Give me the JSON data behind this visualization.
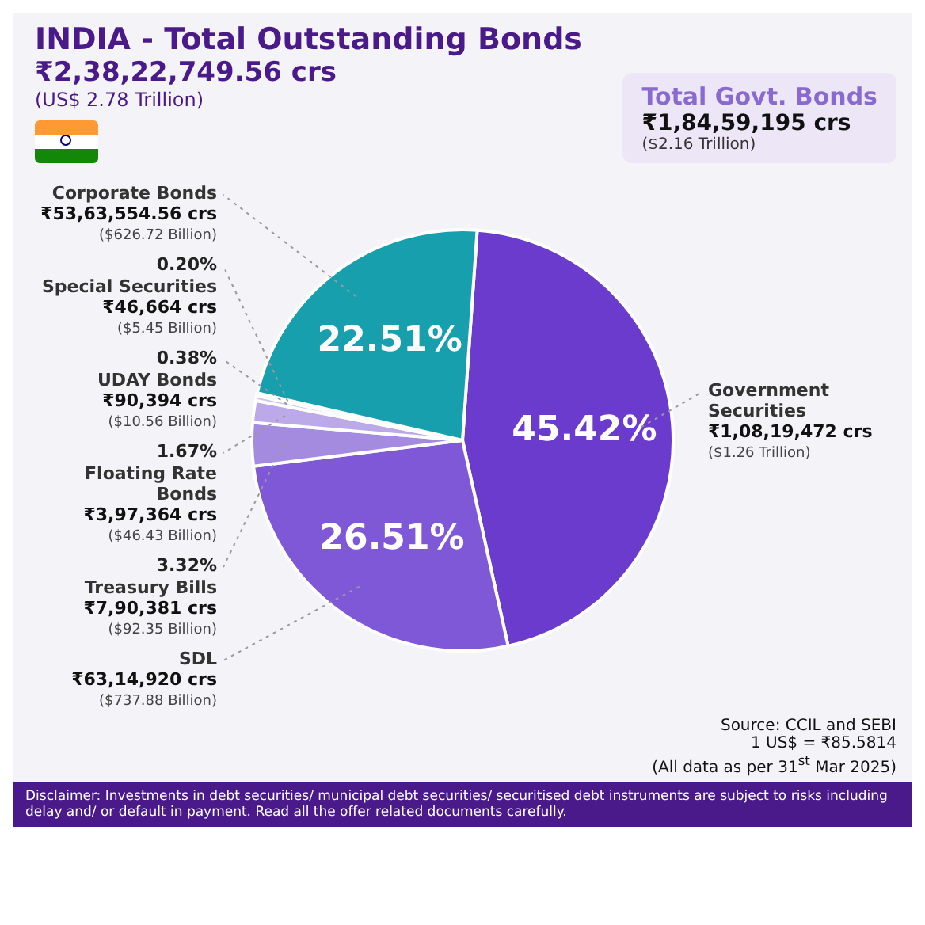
{
  "chart_data": {
    "type": "pie",
    "title": "INDIA - Total Outstanding Bonds",
    "subtitle": "₹2,38,22,749.56 crs",
    "categories": [
      "Government Securities",
      "SDL",
      "Treasury Bills",
      "Floating Rate Bonds",
      "UDAY Bonds",
      "Special Securities",
      "Corporate Bonds"
    ],
    "values": [
      45.42,
      26.51,
      3.32,
      1.67,
      0.38,
      0.2,
      22.51
    ],
    "value_labels": [
      "45.42%",
      "26.51%",
      "3.32%",
      "1.67%",
      "0.38%",
      "0.20%",
      "22.51%"
    ],
    "colors": [
      "#6a3bcc",
      "#7f58d8",
      "#a58be0",
      "#bba9ea",
      "#cfc2f1",
      "#e2daf7",
      "#179fae"
    ],
    "legend": false,
    "annotations": [
      "(US$ 2.78 Trillion)",
      "Total Govt. Bonds",
      "₹1,84,59,195 crs",
      "($2.16 Trillion)",
      {
        "text": "₹1,08,19,472 crs",
        "x": "Government Securities"
      },
      {
        "text": "($1.26 Trillion)",
        "x": "Government Securities"
      },
      {
        "text": "₹63,14,920 crs",
        "x": "SDL"
      },
      {
        "text": "($737.88 Billion)",
        "x": "SDL"
      },
      {
        "text": "₹7,90,381 crs",
        "x": "Treasury Bills"
      },
      {
        "text": "($92.35 Billion)",
        "x": "Treasury Bills"
      },
      {
        "text": "₹3,97,364 crs",
        "x": "Floating Rate Bonds"
      },
      {
        "text": "($46.43 Billion)",
        "x": "Floating Rate Bonds"
      },
      {
        "text": "₹90,394 crs",
        "x": "UDAY Bonds"
      },
      {
        "text": "($10.56 Billion)",
        "x": "UDAY Bonds"
      },
      {
        "text": "₹46,664 crs",
        "x": "Special Securities"
      },
      {
        "text": "($5.45 Billion)",
        "x": "Special Securities"
      },
      {
        "text": "₹53,63,554.56 crs",
        "x": "Corporate Bonds"
      },
      {
        "text": "($626.72 Billion)",
        "x": "Corporate Bonds"
      },
      "Source: CCIL and SEBI",
      "1 US$ = ₹85.5814",
      "(All data as per 31$^{st}$ Mar 2025)",
      "Disclaimer: Investments in debt securities/ municipal debt securities/ securitised debt instruments are subject to risks including delay and/ or default in payment. Read all the offer related documents carefully."
    ]
  }
}
